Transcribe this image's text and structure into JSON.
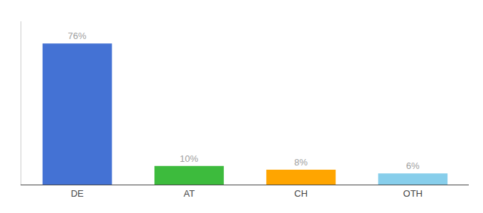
{
  "chart_data": {
    "type": "bar",
    "categories": [
      "DE",
      "AT",
      "CH",
      "OTH"
    ],
    "values": [
      76,
      10,
      8,
      6
    ],
    "value_labels": [
      "76%",
      "10%",
      "8%",
      "6%"
    ],
    "colors": [
      "#4472d4",
      "#3dbb3d",
      "#ffa500",
      "#87ceeb"
    ],
    "ylim": [
      0,
      88
    ],
    "data_labels": true,
    "tick_labels": "x",
    "grid": false
  }
}
